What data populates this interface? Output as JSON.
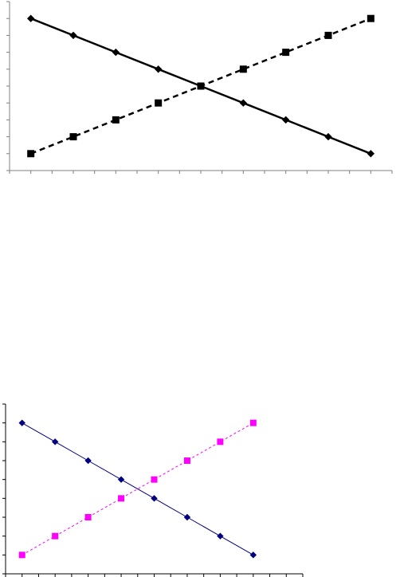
{
  "chart_data": [
    {
      "type": "line",
      "x": [
        1,
        2,
        3,
        4,
        5,
        6,
        7,
        8,
        9
      ],
      "series": [
        {
          "values": [
            9,
            8,
            7,
            6,
            5,
            4,
            3,
            2,
            1
          ],
          "color": "#000000",
          "line_style": "solid",
          "marker": "diamond"
        },
        {
          "values": [
            1,
            2,
            3,
            4,
            5,
            6,
            7,
            8,
            9
          ],
          "color": "#000000",
          "line_style": "dashed",
          "marker": "square"
        }
      ],
      "xlim": [
        0.5,
        9.5
      ],
      "ylim": [
        0,
        10
      ],
      "grid": false
    },
    {
      "type": "line",
      "x": [
        1,
        2,
        3,
        4,
        5,
        6,
        7,
        8
      ],
      "series": [
        {
          "values": [
            8,
            7,
            6,
            5,
            4,
            3,
            2,
            1
          ],
          "color": "#000080",
          "line_style": "solid",
          "marker": "diamond"
        },
        {
          "values": [
            1,
            2,
            3,
            4,
            5,
            6,
            7,
            8
          ],
          "color": "#ff00ff",
          "line_style": "dotted",
          "marker": "square"
        }
      ],
      "xlim": [
        0.5,
        9.5
      ],
      "ylim": [
        0,
        9
      ],
      "grid": false
    }
  ]
}
